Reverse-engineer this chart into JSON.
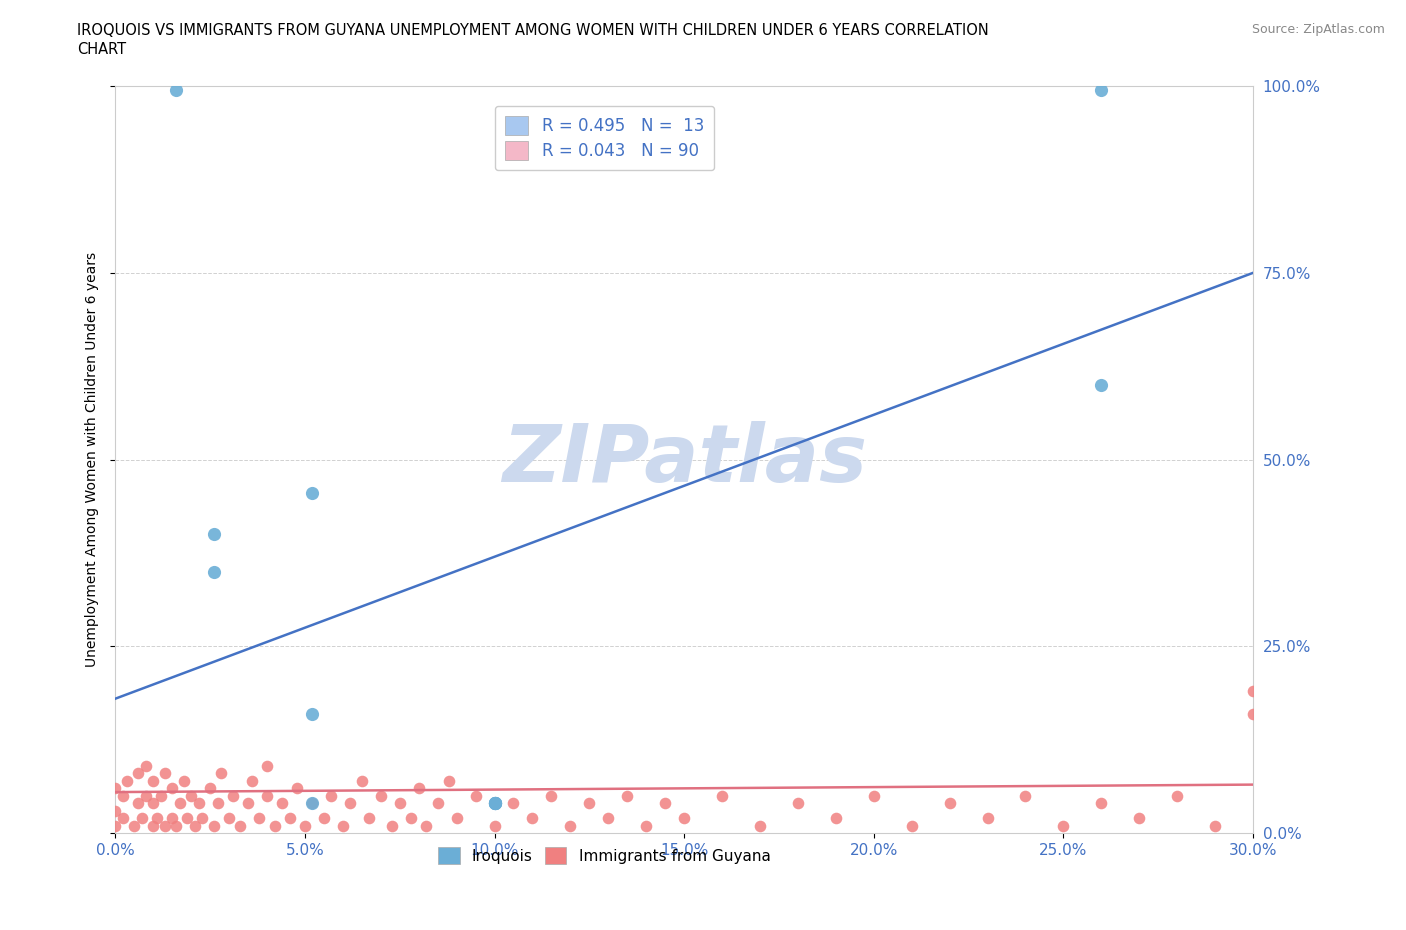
{
  "title_line1": "IROQUOIS VS IMMIGRANTS FROM GUYANA UNEMPLOYMENT AMONG WOMEN WITH CHILDREN UNDER 6 YEARS CORRELATION",
  "title_line2": "CHART",
  "source_text": "Source: ZipAtlas.com",
  "ylabel": "Unemployment Among Women with Children Under 6 years",
  "xmin": 0.0,
  "xmax": 0.3,
  "ymin": 0.0,
  "ymax": 1.0,
  "xtick_labels": [
    "0.0%",
    "5.0%",
    "10.0%",
    "15.0%",
    "20.0%",
    "25.0%",
    "30.0%"
  ],
  "xtick_vals": [
    0.0,
    0.05,
    0.1,
    0.15,
    0.2,
    0.25,
    0.3
  ],
  "ytick_labels": [
    "0.0%",
    "25.0%",
    "50.0%",
    "75.0%",
    "100.0%"
  ],
  "ytick_vals": [
    0.0,
    0.25,
    0.5,
    0.75,
    1.0
  ],
  "legend_R_N_entries": [
    {
      "R": "0.495",
      "N": "13",
      "patch_color": "#a8c8f0"
    },
    {
      "R": "0.043",
      "N": "90",
      "patch_color": "#f4b8c8"
    }
  ],
  "iroquois_color": "#6baed6",
  "guyana_color": "#f08080",
  "blue_line_color": "#4472c4",
  "pink_line_color": "#e07080",
  "watermark_text": "ZIPatlas",
  "watermark_color": "#ccd9ee",
  "blue_line_x0": 0.0,
  "blue_line_y0": 0.18,
  "blue_line_x1": 0.3,
  "blue_line_y1": 0.75,
  "pink_line_x0": 0.0,
  "pink_line_y0": 0.055,
  "pink_line_x1": 0.3,
  "pink_line_y1": 0.065,
  "iroquois_x": [
    0.016,
    0.026,
    0.052,
    0.052,
    0.052,
    0.26,
    0.26,
    0.026,
    0.1,
    0.1,
    0.1,
    0.1,
    0.1
  ],
  "iroquois_y": [
    0.995,
    0.4,
    0.455,
    0.16,
    0.04,
    0.6,
    0.995,
    0.35,
    0.04,
    0.04,
    0.04,
    0.04,
    0.04
  ],
  "guyana_x": [
    0.0,
    0.0,
    0.0,
    0.002,
    0.002,
    0.003,
    0.005,
    0.006,
    0.006,
    0.007,
    0.008,
    0.008,
    0.01,
    0.01,
    0.01,
    0.011,
    0.012,
    0.013,
    0.013,
    0.015,
    0.015,
    0.016,
    0.017,
    0.018,
    0.019,
    0.02,
    0.021,
    0.022,
    0.023,
    0.025,
    0.026,
    0.027,
    0.028,
    0.03,
    0.031,
    0.033,
    0.035,
    0.036,
    0.038,
    0.04,
    0.04,
    0.042,
    0.044,
    0.046,
    0.048,
    0.05,
    0.052,
    0.055,
    0.057,
    0.06,
    0.062,
    0.065,
    0.067,
    0.07,
    0.073,
    0.075,
    0.078,
    0.08,
    0.082,
    0.085,
    0.088,
    0.09,
    0.095,
    0.1,
    0.105,
    0.11,
    0.115,
    0.12,
    0.125,
    0.13,
    0.135,
    0.14,
    0.145,
    0.15,
    0.16,
    0.17,
    0.18,
    0.19,
    0.2,
    0.21,
    0.22,
    0.23,
    0.24,
    0.25,
    0.26,
    0.27,
    0.28,
    0.29,
    0.3,
    0.3
  ],
  "guyana_y": [
    0.01,
    0.03,
    0.06,
    0.02,
    0.05,
    0.07,
    0.01,
    0.04,
    0.08,
    0.02,
    0.05,
    0.09,
    0.01,
    0.04,
    0.07,
    0.02,
    0.05,
    0.01,
    0.08,
    0.02,
    0.06,
    0.01,
    0.04,
    0.07,
    0.02,
    0.05,
    0.01,
    0.04,
    0.02,
    0.06,
    0.01,
    0.04,
    0.08,
    0.02,
    0.05,
    0.01,
    0.04,
    0.07,
    0.02,
    0.05,
    0.09,
    0.01,
    0.04,
    0.02,
    0.06,
    0.01,
    0.04,
    0.02,
    0.05,
    0.01,
    0.04,
    0.07,
    0.02,
    0.05,
    0.01,
    0.04,
    0.02,
    0.06,
    0.01,
    0.04,
    0.07,
    0.02,
    0.05,
    0.01,
    0.04,
    0.02,
    0.05,
    0.01,
    0.04,
    0.02,
    0.05,
    0.01,
    0.04,
    0.02,
    0.05,
    0.01,
    0.04,
    0.02,
    0.05,
    0.01,
    0.04,
    0.02,
    0.05,
    0.01,
    0.04,
    0.02,
    0.05,
    0.01,
    0.16,
    0.19
  ]
}
